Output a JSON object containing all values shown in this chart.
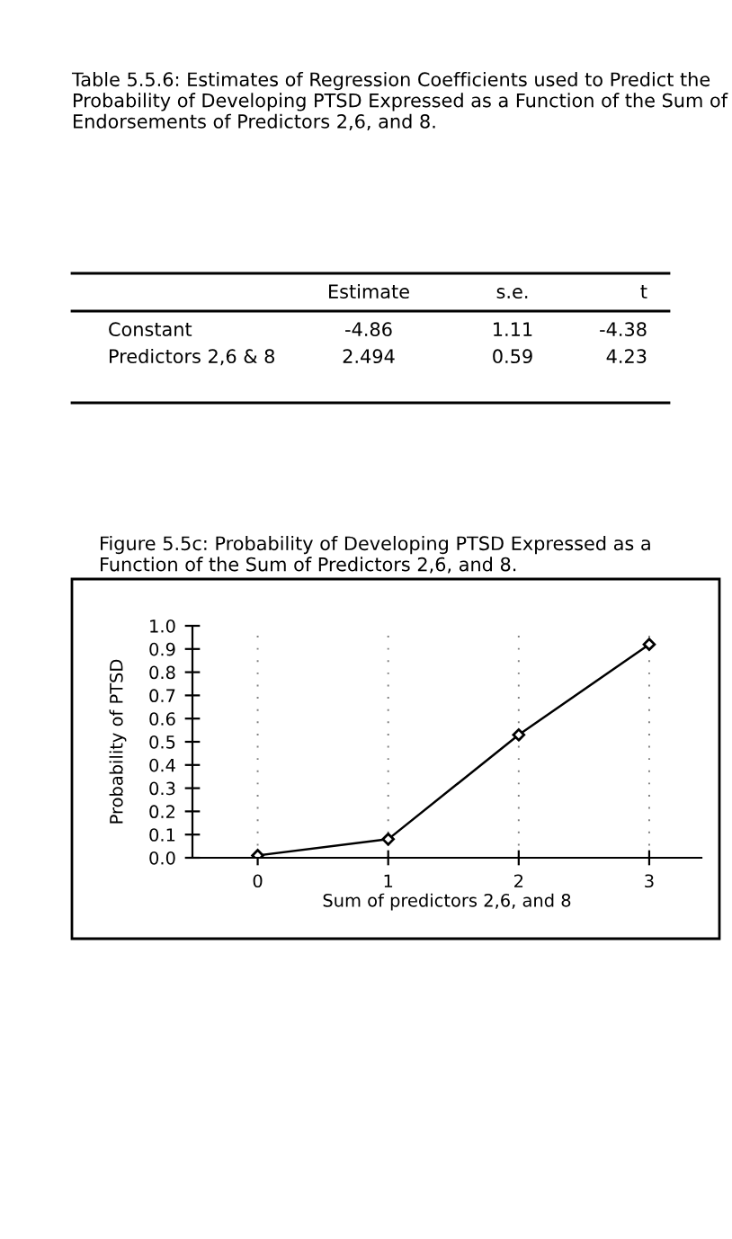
{
  "chart_data": {
    "type": "line",
    "title": "Figure 5.5c: Probability of Developing PTSD Expressed as a Function of the Sum of Predictors 2,6, and 8.",
    "xlabel": "Sum of predictors 2,6, and 8",
    "ylabel": "Probability of PTSD",
    "annotations": [
      "Table 5.5.6: Estimates of Regression Coefficients used to Predict the Probability of Developing PTSD Expressed as a Function of the Sum of Endorsements of Predictors 2,6, and 8.",
      "Estimate",
      "s.e.",
      "t",
      "Constant",
      "-4.86",
      "1.11",
      "-4.38",
      "Predictors 2,6 & 8",
      "2.494",
      "0.59",
      "4.23"
    ],
    "x": [
      0,
      1,
      2,
      3
    ],
    "series": [
      {
        "color": "#000000",
        "values": [
          0.01,
          0.08,
          0.53,
          0.92
        ]
      }
    ],
    "xlim": [
      -0.5,
      3.4
    ],
    "ylim": [
      0,
      1.0
    ],
    "xticks": [
      0,
      1,
      2,
      3
    ],
    "yticks": [
      {
        "value": 0,
        "label": "0.0"
      },
      0.1,
      0.2,
      0.3,
      0.4,
      0.5,
      0.6,
      0.7,
      0.8,
      0.9,
      {
        "value": 1,
        "label": "1.0"
      }
    ],
    "grid": "x",
    "marker": "diamond",
    "line_style": "solid"
  }
}
